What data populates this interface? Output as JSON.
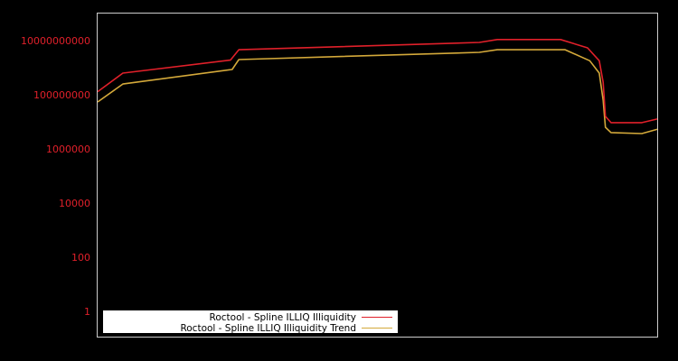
{
  "chart_data": {
    "type": "line",
    "title": "",
    "xlabel": "",
    "ylabel": "",
    "yscale": "log",
    "ylim": [
      0.3,
      100000000000.0
    ],
    "grid": false,
    "legend_position": "lower-left",
    "y_ticks": [
      {
        "value": 10000000000.0,
        "label": "10000000000"
      },
      {
        "value": 100000000.0,
        "label": "100000000"
      },
      {
        "value": 1000000.0,
        "label": "1000000"
      },
      {
        "value": 10000.0,
        "label": "10000"
      },
      {
        "value": 100.0,
        "label": "100"
      },
      {
        "value": 1,
        "label": "1"
      }
    ],
    "series": [
      {
        "name": "Roctool - Spline ILLIQ Illiquidity",
        "color": "#e0202a",
        "x": [
          0,
          0.045,
          0.237,
          0.252,
          0.681,
          0.713,
          0.826,
          0.874,
          0.895,
          0.902,
          0.906,
          0.916,
          0.971,
          1.0
        ],
        "values": [
          130000000.0,
          630000000.0,
          1900000000.0,
          4600000000.0,
          8600000000.0,
          11000000000.0,
          11000000000.0,
          5400000000.0,
          1800000000.0,
          290000000.0,
          16000000.0,
          9300000.0,
          9300000.0,
          13000000.0
        ]
      },
      {
        "name": "Roctool - Spline ILLIQ Illiquidity Trend",
        "color": "#d4a93a",
        "x": [
          0,
          0.045,
          0.24,
          0.252,
          0.681,
          0.713,
          0.834,
          0.878,
          0.895,
          0.902,
          0.906,
          0.916,
          0.971,
          1.0
        ],
        "values": [
          54000000.0,
          250000000.0,
          860000000.0,
          2000000000.0,
          3700000000.0,
          4600000000.0,
          4600000000.0,
          1800000000.0,
          630000000.0,
          63000000.0,
          6300000.0,
          4000000.0,
          3700000.0,
          5400000.0
        ]
      }
    ]
  },
  "legend": {
    "items": [
      {
        "label": "Roctool - Spline ILLIQ Illiquidity",
        "color": "#e0202a"
      },
      {
        "label": "Roctool - Spline ILLIQ Illiquidity Trend",
        "color": "#d4a93a"
      }
    ]
  },
  "colors": {
    "background": "#000000",
    "axis": "#cccccc",
    "tick_label": "#e0202a",
    "legend_bg": "#ffffff"
  }
}
